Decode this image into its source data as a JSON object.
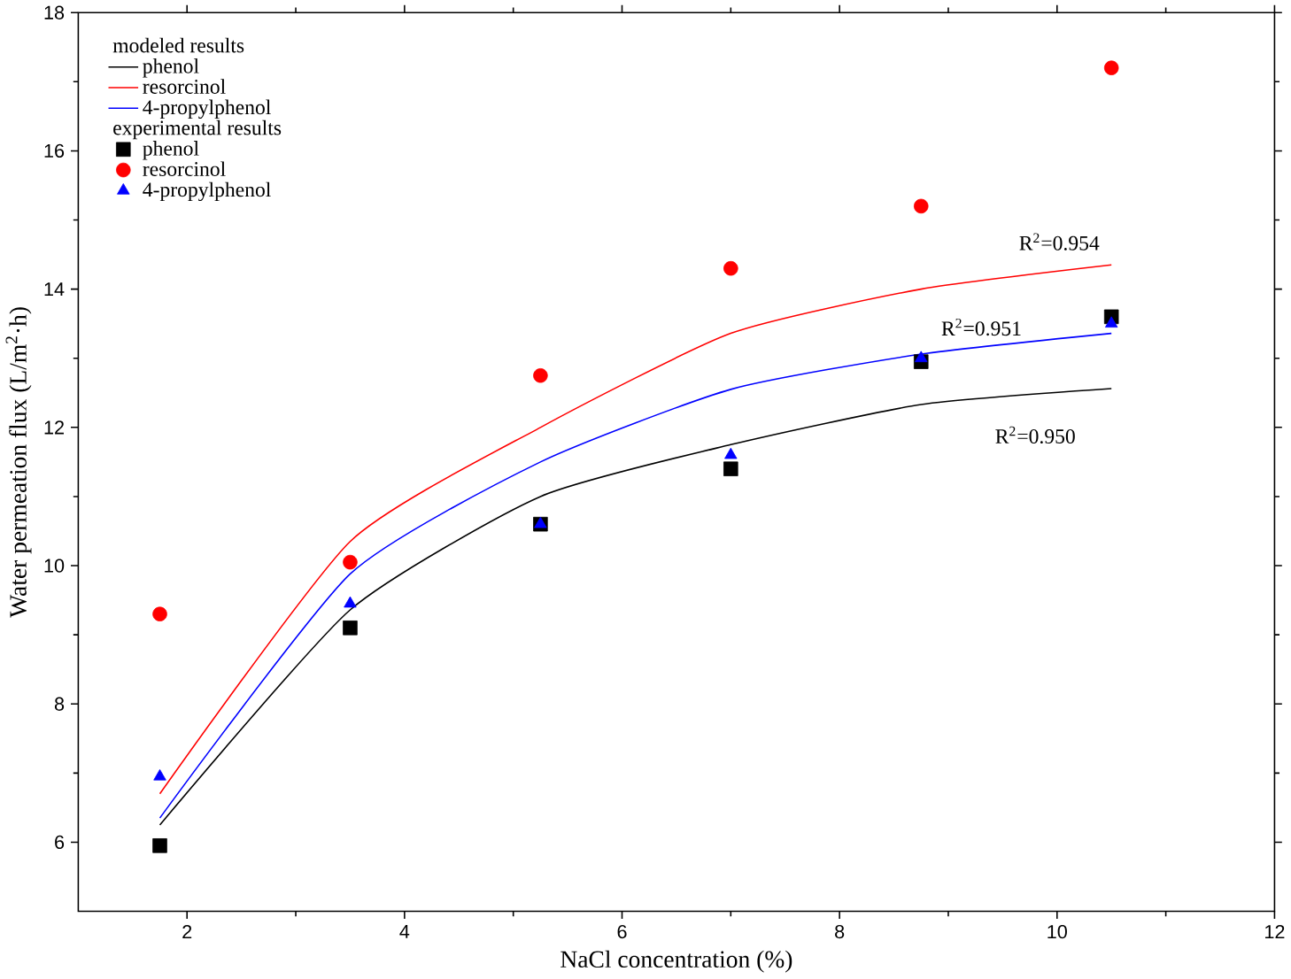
{
  "chart_data": {
    "type": "scatter",
    "xlabel": "NaCl concentration (%)",
    "ylabel": "Water permeation flux (L/m$^{2}$·h)",
    "legend_title": "modeled results",
    "legend": "top left",
    "xlim": [
      1,
      12
    ],
    "xticks": [
      2,
      4,
      6,
      8,
      10,
      12
    ],
    "ylim": [
      5,
      18
    ],
    "yticks": [
      6,
      8,
      10,
      12,
      14,
      16,
      18
    ],
    "series": [
      {
        "name": "phenol",
        "type": "line",
        "color": "#000000",
        "x": [
          1.75,
          3.5,
          5.25,
          7,
          8.75,
          10.5
        ],
        "values": [
          6.25,
          9.36,
          11.0,
          11.75,
          12.33,
          12.56
        ]
      },
      {
        "name": "resorcinol",
        "type": "line",
        "color": "#ff0000",
        "x": [
          1.75,
          3.5,
          5.25,
          7,
          8.75,
          10.5
        ],
        "values": [
          6.7,
          10.35,
          12.0,
          13.36,
          14.0,
          14.35
        ]
      },
      {
        "name": "4-propylphenol",
        "type": "line",
        "color": "#0000ff",
        "x": [
          1.75,
          3.5,
          5.25,
          7,
          8.75,
          10.5
        ],
        "values": [
          6.35,
          9.88,
          11.5,
          12.55,
          13.06,
          13.36
        ]
      },
      {
        "name": "phenol",
        "marker": "square",
        "color": "#000000",
        "x": [
          1.75,
          3.5,
          5.25,
          7,
          8.75,
          10.5
        ],
        "values": [
          5.95,
          9.1,
          10.6,
          11.4,
          12.95,
          13.6
        ]
      },
      {
        "name": "resorcinol",
        "marker": "circle",
        "color": "#ff0000",
        "x": [
          1.75,
          3.5,
          5.25,
          7,
          8.75,
          10.5
        ],
        "values": [
          9.3,
          10.05,
          12.75,
          14.3,
          15.2,
          17.2
        ]
      },
      {
        "name": "4-propylphenol",
        "marker": "triangle",
        "color": "#0000ff",
        "x": [
          1.75,
          3.5,
          5.25,
          7,
          8.75,
          10.5
        ],
        "values": [
          6.95,
          9.45,
          10.6,
          11.6,
          13.0,
          13.5
        ]
      }
    ],
    "annotations": [
      "experimental results",
      "R$^{2}$=0.954",
      "R$^{2}$=0.951",
      "R$^{2}$=0.950"
    ]
  }
}
